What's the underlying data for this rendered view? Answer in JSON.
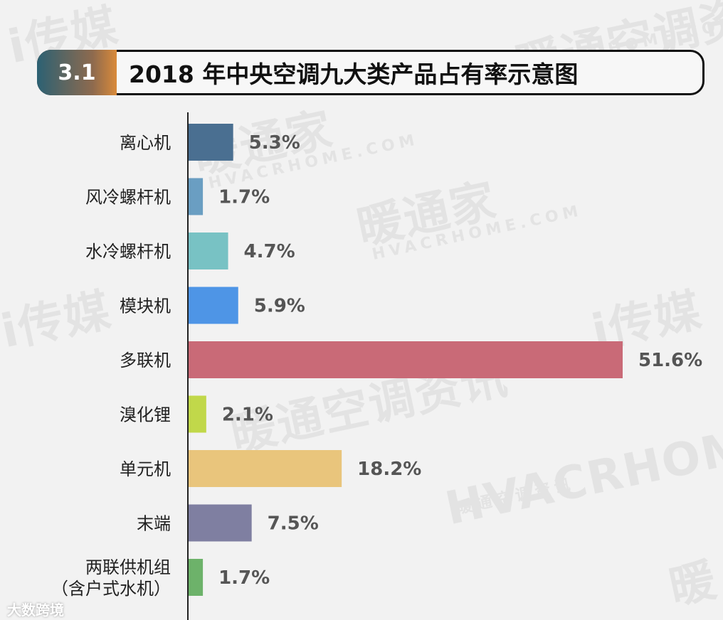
{
  "header": {
    "badge": "3.1",
    "title": "2018 年中央空调九大类产品占有率示意图"
  },
  "watermarks": [
    "i传媒",
    "暖通空调资讯",
    "HVACRHOME.COM",
    "暖通家",
    "HVACRHOME.COM",
    "暖通家",
    "HVACRHOME.COM",
    "i传媒",
    "i传媒",
    "暖通空调资讯",
    "HVACRHOME.COM",
    "暖通空调资讯",
    "暖"
  ],
  "footer": {
    "logo_text": "大数跨境"
  },
  "chart_data": {
    "type": "bar",
    "orientation": "horizontal",
    "categories": [
      "离心机",
      "风冷螺杆机",
      "水冷螺杆机",
      "模块机",
      "多联机",
      "溴化锂",
      "单元机",
      "末端",
      "两联供机组（含户式水机）"
    ],
    "category_lines": [
      [
        "离心机"
      ],
      [
        "风冷螺杆机"
      ],
      [
        "水冷螺杆机"
      ],
      [
        "模块机"
      ],
      [
        "多联机"
      ],
      [
        "溴化锂"
      ],
      [
        "单元机"
      ],
      [
        "末端"
      ],
      [
        "两联供机组",
        "（含户式水机）"
      ]
    ],
    "values": [
      5.3,
      1.7,
      4.7,
      5.9,
      51.6,
      2.1,
      18.2,
      7.5,
      1.7
    ],
    "value_labels": [
      "5.3%",
      "1.7%",
      "4.7%",
      "5.9%",
      "51.6%",
      "2.1%",
      "18.2%",
      "7.5%",
      "1.7%"
    ],
    "colors": [
      "#4a6f91",
      "#6a9ec2",
      "#78c2c4",
      "#4e95e6",
      "#c96a77",
      "#c1d84a",
      "#e9c57c",
      "#7f7fa1",
      "#6db26a"
    ],
    "xlim": [
      0,
      51.6
    ],
    "grid": false,
    "legend": "none"
  }
}
